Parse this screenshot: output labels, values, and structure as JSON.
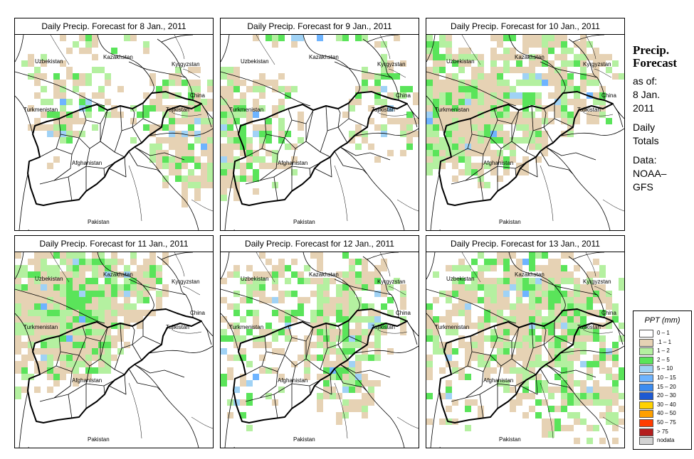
{
  "panels": [
    {
      "title": "Daily Precip. Forecast for  8 Jan., 2011",
      "seed": 11,
      "cells": [
        [
          0.12,
          0.16,
          0.18,
          0.12,
          0.4
        ],
        [
          0.45,
          0.02,
          0.52,
          0.22,
          0.45
        ],
        [
          0.3,
          0.35,
          0.5,
          0.42,
          0.55
        ],
        [
          0.22,
          0.44,
          0.3,
          0.52,
          0.3
        ],
        [
          0.82,
          0.46,
          0.5,
          0.6,
          0.55
        ],
        [
          0.88,
          0.52,
          0.4,
          0.7,
          0.6
        ]
      ]
    },
    {
      "title": "Daily Precip. Forecast for  9 Jan., 2011",
      "seed": 23,
      "cells": [
        [
          0.02,
          0.45,
          0.25,
          0.67,
          0.75
        ],
        [
          0.22,
          0.5,
          0.45,
          0.63,
          0.5
        ],
        [
          0.5,
          0.02,
          0.85,
          0.12,
          0.3
        ],
        [
          0.05,
          0.55,
          0.25,
          0.7,
          0.55
        ],
        [
          0.85,
          0.38,
          0.5,
          0.55,
          0.5
        ]
      ]
    },
    {
      "title": "Daily Precip. Forecast for  10 Jan., 2011",
      "seed": 37,
      "cells": [
        [
          0.0,
          0.3,
          0.62,
          0.62,
          0.8
        ],
        [
          0.02,
          0.42,
          0.28,
          0.62,
          0.85
        ],
        [
          0.25,
          0.38,
          0.32,
          0.6,
          0.8
        ],
        [
          0.3,
          0.5,
          0.7,
          0.55,
          0.75
        ],
        [
          0.6,
          0.25,
          0.7,
          0.6,
          0.55
        ],
        [
          0.55,
          0.05,
          0.5,
          0.42,
          0.35
        ],
        [
          0.85,
          0.3,
          0.5,
          0.4,
          0.3
        ]
      ]
    },
    {
      "title": "Daily Precip. Forecast for  11 Jan., 2011",
      "seed": 41,
      "cells": [
        [
          0.0,
          0.48,
          0.92,
          0.52,
          0.5
        ],
        [
          0.4,
          0.05,
          0.82,
          0.85,
          0.35
        ],
        [
          0.35,
          0.12,
          0.9,
          0.65,
          0.6
        ],
        [
          0.25,
          0.3,
          0.65,
          0.62,
          0.8
        ],
        [
          0.3,
          0.4,
          0.6,
          0.55,
          0.8
        ]
      ]
    },
    {
      "title": "Daily Precip. Forecast for  12 Jan., 2011",
      "seed": 53,
      "cells": [
        [
          0.25,
          0.25,
          0.52,
          0.5,
          0.3
        ],
        [
          0.3,
          0.35,
          0.62,
          0.55,
          0.3
        ],
        [
          0.55,
          0.02,
          0.6,
          0.3,
          0.25
        ],
        [
          0.1,
          0.62,
          0.45,
          0.6,
          0.3
        ],
        [
          0.7,
          0.3,
          0.5,
          0.55,
          0.6
        ],
        [
          0.62,
          0.55,
          0.4,
          0.7,
          0.8
        ]
      ]
    },
    {
      "title": "Daily Precip. Forecast for  13 Jan., 2011",
      "seed": 67,
      "cells": [
        [
          0.08,
          0.45,
          0.55,
          0.35,
          0.25
        ],
        [
          0.25,
          0.3,
          0.55,
          0.6,
          0.4
        ],
        [
          0.45,
          0.08,
          0.55,
          0.42,
          0.3
        ],
        [
          0.5,
          0.35,
          0.72,
          0.62,
          0.45
        ],
        [
          0.6,
          0.25,
          0.75,
          0.6,
          0.55
        ],
        [
          0.1,
          0.65,
          0.45,
          0.6,
          0.25
        ],
        [
          0.8,
          0.55,
          0.9,
          0.9,
          0.65
        ]
      ]
    }
  ],
  "map_labels": {
    "uzbekistan": "Uzbekistan",
    "kazakhstan": "Kazakhstan",
    "kyrgyzstan": "Kyrgyzstan",
    "china": "China",
    "turkmenistan": "Turkmenistan",
    "tajikistan": "Tajikistan",
    "afghanistan": "Afghanistan",
    "pakistan": "Pakistan",
    "iran": "Iran",
    "india": "India"
  },
  "side": {
    "title_line1": "Precip.",
    "title_line2": "Forecast",
    "asof_line1": "as of:",
    "asof_line2": "8 Jan.",
    "asof_line3": "2011",
    "daily_line1": "Daily",
    "daily_line2": "Totals",
    "source_line1": "Data:",
    "source_line2": "NOAA–",
    "source_line3": "GFS"
  },
  "legend": {
    "title": "PPT (mm)",
    "items": [
      {
        "label": "0 – 1",
        "color": "#ffffff"
      },
      {
        "label": ".1 – 1",
        "color": "#e6d2b4"
      },
      {
        "label": "1 – 2",
        "color": "#b4f0a0"
      },
      {
        "label": "2 – 5",
        "color": "#5ae45a"
      },
      {
        "label": "5 – 10",
        "color": "#a0d2f5"
      },
      {
        "label": "10 – 15",
        "color": "#6eb4ff"
      },
      {
        "label": "15 – 20",
        "color": "#3c8cf0"
      },
      {
        "label": "20 – 30",
        "color": "#1e5ad2"
      },
      {
        "label": "30 – 40",
        "color": "#ffd200"
      },
      {
        "label": "40 – 50",
        "color": "#ffa000"
      },
      {
        "label": "50 – 75",
        "color": "#ff3c00"
      },
      {
        "label": "> 75",
        "color": "#b41e1e"
      },
      {
        "label": "nodata",
        "color": "#d2d2d2"
      }
    ]
  }
}
